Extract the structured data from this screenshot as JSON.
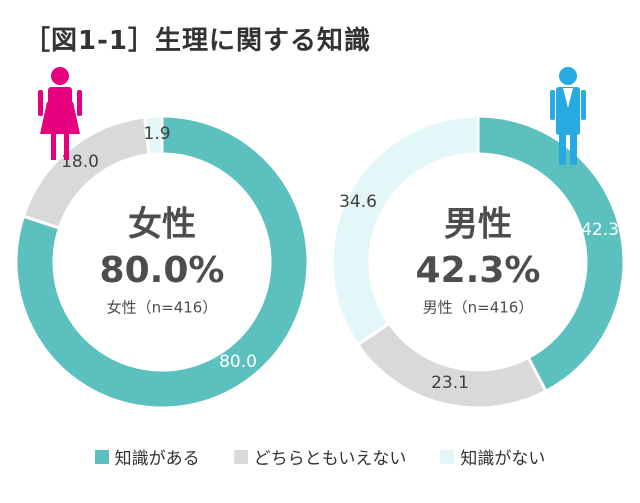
{
  "title": "［図1-1］生理に関する知識",
  "colors": {
    "know": "#5bc0be",
    "neither": "#d9d9d9",
    "dont_know": "#e4f7f8",
    "female_icon": "#e6007e",
    "male_icon": "#27a9e1",
    "center_text": "#4d4d4d",
    "label_light": "#ffffff",
    "label_dark": "#404040"
  },
  "legend": [
    "知識がある",
    "どちらともいえない",
    "知識がない"
  ],
  "chart_data": [
    {
      "type": "pie",
      "center_title": "女性",
      "center_value": "80.0%",
      "center_note": "女性（n=416）",
      "icon": "female-icon",
      "categories": [
        "知識がある",
        "どちらともいえない",
        "知識がない"
      ],
      "values": [
        80.0,
        18.0,
        1.9
      ],
      "labels": [
        "80.0",
        "18.0",
        "1.9"
      ]
    },
    {
      "type": "pie",
      "center_title": "男性",
      "center_value": "42.3%",
      "center_note": "男性（n=416）",
      "icon": "male-icon",
      "categories": [
        "知識がある",
        "どちらともいえない",
        "知識がない"
      ],
      "values": [
        42.3,
        23.1,
        34.6
      ],
      "labels": [
        "42.3",
        "23.1",
        "34.6"
      ]
    }
  ]
}
